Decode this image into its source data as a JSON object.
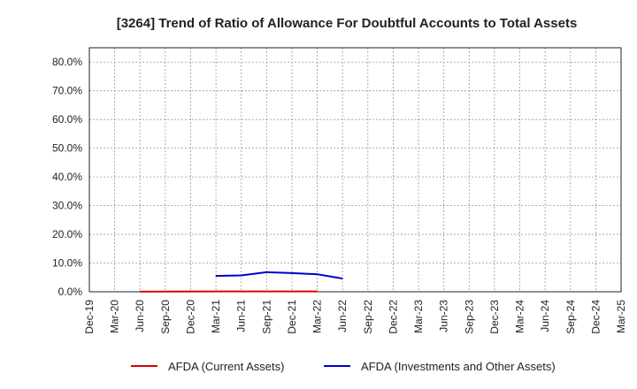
{
  "chart_data": {
    "type": "line",
    "title": "[3264]  Trend of Ratio of Allowance For Doubtful Accounts to Total Assets",
    "xlabel": "",
    "ylabel": "",
    "x_ticks": [
      "Dec-19",
      "Mar-20",
      "Jun-20",
      "Sep-20",
      "Dec-20",
      "Mar-21",
      "Jun-21",
      "Sep-21",
      "Dec-21",
      "Mar-22",
      "Jun-22",
      "Sep-22",
      "Dec-22",
      "Mar-23",
      "Jun-23",
      "Sep-23",
      "Dec-23",
      "Mar-24",
      "Jun-24",
      "Sep-24",
      "Dec-24",
      "Mar-25"
    ],
    "y_ticks": [
      "0.0%",
      "10.0%",
      "20.0%",
      "30.0%",
      "40.0%",
      "50.0%",
      "60.0%",
      "70.0%",
      "80.0%"
    ],
    "ylim": [
      0,
      85
    ],
    "y_tick_values": [
      0,
      10,
      20,
      30,
      40,
      50,
      60,
      70,
      80
    ],
    "grid": true,
    "legend_position": "bottom",
    "series": [
      {
        "name": "AFDA (Current Assets)",
        "color": "#dd0000",
        "x": [
          "Jun-20",
          "Mar-21",
          "Jun-21",
          "Sep-21",
          "Dec-21",
          "Mar-22"
        ],
        "values": [
          0.05,
          0.1,
          0.1,
          0.1,
          0.1,
          0.1
        ]
      },
      {
        "name": "AFDA (Investments and Other Assets)",
        "color": "#0000cc",
        "x": [
          "Mar-21",
          "Jun-21",
          "Sep-21",
          "Dec-21",
          "Mar-22",
          "Jun-22"
        ],
        "values": [
          5.5,
          5.7,
          6.8,
          6.5,
          6.1,
          4.6
        ]
      }
    ]
  }
}
